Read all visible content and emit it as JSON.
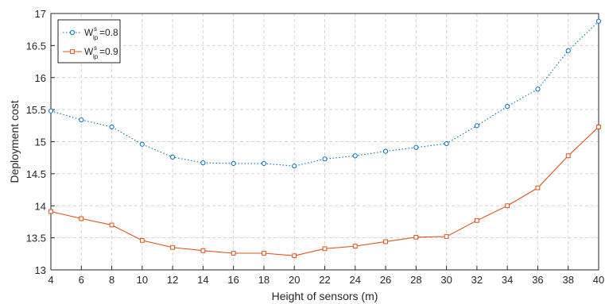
{
  "chart_data": {
    "type": "line",
    "xlabel": "Height of sensors (m)",
    "ylabel": "Deployment cost",
    "xlim": [
      4,
      40
    ],
    "ylim": [
      13,
      17
    ],
    "x_ticks": [
      4,
      6,
      8,
      10,
      12,
      14,
      16,
      18,
      20,
      22,
      24,
      26,
      28,
      30,
      32,
      34,
      36,
      38,
      40
    ],
    "y_ticks": [
      13,
      13.5,
      14,
      14.5,
      15,
      15.5,
      16,
      16.5,
      17
    ],
    "grid": true,
    "legend_position": "top-left",
    "x": [
      4,
      6,
      8,
      10,
      12,
      14,
      16,
      18,
      20,
      22,
      24,
      26,
      28,
      30,
      32,
      34,
      36,
      38,
      40
    ],
    "series": [
      {
        "legend": {
          "base": "W",
          "sup": "s",
          "sub": "ip",
          "value": "=0.8"
        },
        "color": "#0072BD",
        "marker": "circle",
        "line_style": "dotted",
        "values": [
          15.48,
          15.34,
          15.23,
          14.96,
          14.76,
          14.67,
          14.66,
          14.66,
          14.62,
          14.73,
          14.78,
          14.85,
          14.91,
          14.97,
          15.25,
          15.55,
          15.82,
          16.42,
          16.88
        ]
      },
      {
        "legend": {
          "base": "W",
          "sup": "s",
          "sub": "ip",
          "value": "=0.9"
        },
        "color": "#D95319",
        "marker": "square",
        "line_style": "solid",
        "values": [
          13.91,
          13.8,
          13.7,
          13.46,
          13.35,
          13.3,
          13.26,
          13.26,
          13.22,
          13.33,
          13.37,
          13.44,
          13.51,
          13.52,
          13.77,
          14.0,
          14.28,
          14.78,
          15.23
        ]
      }
    ]
  }
}
